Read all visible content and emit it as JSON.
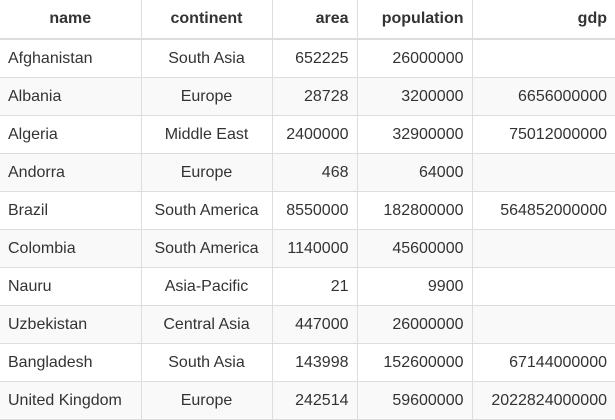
{
  "table": {
    "columns": [
      {
        "key": "name",
        "label": "name",
        "align": "center"
      },
      {
        "key": "continent",
        "label": "continent",
        "align": "center"
      },
      {
        "key": "area",
        "label": "area",
        "align": "right"
      },
      {
        "key": "population",
        "label": "population",
        "align": "right"
      },
      {
        "key": "gdp",
        "label": "gdp",
        "align": "right"
      }
    ],
    "rows": [
      {
        "name": "Afghanistan",
        "continent": "South Asia",
        "area": "652225",
        "population": "26000000",
        "gdp": ""
      },
      {
        "name": "Albania",
        "continent": "Europe",
        "area": "28728",
        "population": "3200000",
        "gdp": "6656000000"
      },
      {
        "name": "Algeria",
        "continent": "Middle East",
        "area": "2400000",
        "population": "32900000",
        "gdp": "75012000000"
      },
      {
        "name": "Andorra",
        "continent": "Europe",
        "area": "468",
        "population": "64000",
        "gdp": ""
      },
      {
        "name": "Brazil",
        "continent": "South America",
        "area": "8550000",
        "population": "182800000",
        "gdp": "564852000000"
      },
      {
        "name": "Colombia",
        "continent": "South America",
        "area": "1140000",
        "population": "45600000",
        "gdp": ""
      },
      {
        "name": "Nauru",
        "continent": "Asia-Pacific",
        "area": "21",
        "population": "9900",
        "gdp": ""
      },
      {
        "name": "Uzbekistan",
        "continent": "Central Asia",
        "area": "447000",
        "population": "26000000",
        "gdp": ""
      },
      {
        "name": "Bangladesh",
        "continent": "South Asia",
        "area": "143998",
        "population": "152600000",
        "gdp": "67144000000"
      },
      {
        "name": "United Kingdom",
        "continent": "Europe",
        "area": "242514",
        "population": "59600000",
        "gdp": "2022824000000"
      }
    ]
  }
}
